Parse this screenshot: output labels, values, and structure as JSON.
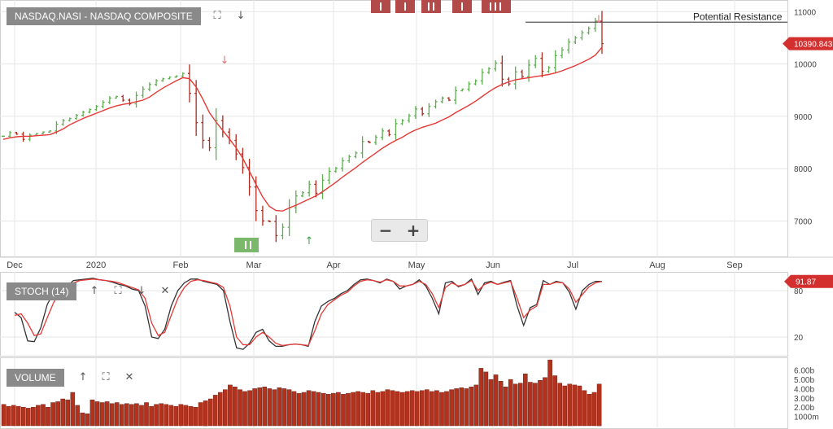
{
  "panels": {
    "price": {
      "label": "NASDAQ.NASI - NASDAQ COMPOSITE",
      "resistance_label": "Potential Resistance",
      "last_price": "10390.843"
    },
    "stoch": {
      "label": "STOCH (14)",
      "last_value": "91.87"
    },
    "volume": {
      "label": "VOLUME"
    }
  },
  "icons": {
    "expand": "expand-icon",
    "up": "arrow-up-icon",
    "down": "arrow-down-icon",
    "close": "close-icon",
    "zoom_out": "minus-icon",
    "zoom_in": "plus-icon"
  },
  "glyphs": {
    "expand": "⛶",
    "up": "↑",
    "down": "↓",
    "close": "✕",
    "minus": "−",
    "plus": "+"
  },
  "colors": {
    "up_bar": "#5cae4f",
    "down_bar": "#b02a1e",
    "moving_average": "#e53935",
    "stoch_k": "#333333",
    "stoch_d": "#e53935",
    "volume_bar": "#b3321d",
    "badge": "#d32f2f",
    "grid": "#e6e6e6"
  },
  "chart_data": [
    {
      "type": "line",
      "title": "NASDAQ.NASI - NASDAQ COMPOSITE",
      "x_axis_labels": [
        "Dec",
        "2020",
        "Feb",
        "Mar",
        "Apr",
        "May",
        "Jun",
        "Jul",
        "Aug",
        "Sep"
      ],
      "y_ticks": [
        7000,
        8000,
        9000,
        10000,
        11000
      ],
      "ylim": [
        6400,
        11100
      ],
      "price_series": [
        8620,
        8690,
        8660,
        8560,
        8640,
        8670,
        8700,
        8720,
        8850,
        8920,
        8960,
        9020,
        9080,
        9130,
        9190,
        9270,
        9350,
        9380,
        9310,
        9240,
        9400,
        9520,
        9610,
        9680,
        9720,
        9750,
        9770,
        9820,
        9440,
        8880,
        8540,
        8400,
        8920,
        8700,
        8540,
        8280,
        8020,
        7650,
        7200,
        7000,
        6990,
        6720,
        6880,
        7250,
        7480,
        7540,
        7700,
        7530,
        7780,
        7950,
        8010,
        8150,
        8230,
        8300,
        8520,
        8500,
        8600,
        8720,
        8650,
        8860,
        8920,
        9010,
        9140,
        9050,
        9190,
        9280,
        9350,
        9310,
        9490,
        9520,
        9620,
        9680,
        9840,
        9910,
        10020,
        9710,
        9620,
        9850,
        9760,
        9980,
        10110,
        9860,
        9930,
        10160,
        10270,
        10420,
        10500,
        10600,
        10680,
        10820,
        10390.843
      ],
      "moving_average": [
        8560,
        8590,
        8610,
        8620,
        8620,
        8630,
        8640,
        8650,
        8700,
        8760,
        8840,
        8900,
        8960,
        9010,
        9060,
        9110,
        9160,
        9200,
        9230,
        9250,
        9280,
        9310,
        9370,
        9460,
        9540,
        9610,
        9680,
        9740,
        9720,
        9560,
        9330,
        9070,
        8890,
        8730,
        8570,
        8400,
        8200,
        7950,
        7700,
        7460,
        7280,
        7200,
        7190,
        7250,
        7300,
        7360,
        7420,
        7480,
        7560,
        7650,
        7740,
        7840,
        7930,
        8020,
        8120,
        8210,
        8300,
        8390,
        8470,
        8540,
        8600,
        8680,
        8740,
        8790,
        8830,
        8870,
        8930,
        8990,
        9070,
        9140,
        9210,
        9290,
        9380,
        9470,
        9550,
        9610,
        9660,
        9700,
        9720,
        9740,
        9760,
        9780,
        9800,
        9830,
        9870,
        9920,
        9970,
        10030,
        10090,
        10170,
        10320
      ],
      "resistance_level": 10800,
      "annotations": [
        "Potential Resistance"
      ]
    },
    {
      "type": "line",
      "title": "STOCH (14)",
      "y_ticks": [
        20,
        80
      ],
      "ylim": [
        0,
        100
      ],
      "series": [
        {
          "values": [
            52,
            45,
            15,
            14,
            32,
            62,
            78,
            82,
            85,
            93,
            94,
            95,
            96,
            94,
            93,
            91,
            88,
            86,
            82,
            80,
            60,
            20,
            18,
            30,
            60,
            80,
            90,
            95,
            95,
            92,
            90,
            88,
            80,
            40,
            6,
            4,
            12,
            26,
            30,
            15,
            8,
            8,
            10,
            11,
            10,
            8,
            40,
            60,
            66,
            70,
            76,
            80,
            88,
            94,
            95,
            93,
            90,
            95,
            92,
            82,
            86,
            88,
            94,
            86,
            70,
            50,
            90,
            92,
            85,
            88,
            95,
            75,
            90,
            92,
            88,
            91,
            93,
            60,
            35,
            58,
            62,
            93,
            88,
            92,
            90,
            78,
            56,
            80,
            88,
            92,
            91.87
          ]
        },
        {
          "values": [
            48,
            50,
            38,
            22,
            24,
            45,
            65,
            78,
            82,
            90,
            93,
            94,
            95,
            94,
            93,
            92,
            90,
            87,
            84,
            81,
            70,
            38,
            22,
            26,
            48,
            70,
            84,
            92,
            94,
            93,
            91,
            89,
            84,
            60,
            20,
            10,
            10,
            20,
            26,
            20,
            12,
            9,
            10,
            11,
            10,
            9,
            28,
            50,
            62,
            68,
            74,
            78,
            86,
            92,
            94,
            93,
            91,
            94,
            92,
            86,
            86,
            88,
            92,
            88,
            76,
            58,
            84,
            90,
            86,
            88,
            93,
            80,
            88,
            91,
            88,
            90,
            92,
            70,
            45,
            55,
            60,
            88,
            88,
            91,
            90,
            82,
            65,
            75,
            85,
            90,
            92
          ]
        }
      ]
    },
    {
      "type": "bar",
      "title": "VOLUME",
      "y_ticks": [
        "1000m",
        "2.00b",
        "3.00b",
        "4.00b",
        "5.00b",
        "6.00b"
      ],
      "ylim": [
        0,
        7.2
      ],
      "values": [
        2.3,
        2.1,
        2.2,
        2.1,
        2.0,
        1.9,
        2.0,
        2.2,
        2.3,
        2.0,
        2.5,
        2.6,
        2.9,
        2.8,
        3.6,
        2.2,
        1.4,
        1.3,
        2.8,
        2.6,
        2.5,
        2.6,
        2.4,
        2.5,
        2.3,
        2.4,
        2.3,
        2.4,
        2.2,
        2.5,
        2.1,
        2.3,
        2.4,
        2.3,
        2.2,
        2.1,
        2.3,
        2.2,
        2.1,
        2.0,
        2.5,
        2.7,
        2.9,
        3.3,
        3.6,
        3.9,
        4.4,
        4.2,
        3.9,
        3.7,
        3.8,
        4.0,
        4.1,
        4.2,
        4.0,
        3.9,
        4.1,
        4.0,
        3.9,
        3.7,
        3.5,
        3.6,
        3.8,
        3.7,
        3.6,
        3.5,
        3.4,
        3.5,
        3.6,
        3.4,
        3.5,
        3.6,
        3.7,
        3.6,
        3.5,
        3.8,
        3.6,
        3.7,
        3.9,
        3.8,
        3.7,
        3.6,
        3.7,
        3.8,
        3.7,
        3.8,
        3.9,
        3.7,
        3.8,
        3.6,
        3.7,
        3.9,
        4.0,
        4.1,
        4.0,
        4.2,
        4.4,
        6.2,
        5.8,
        5.0,
        5.5,
        4.8,
        4.2,
        5.0,
        4.5,
        4.6,
        5.6,
        4.7,
        4.6,
        4.9,
        5.2,
        7.1,
        5.4,
        4.6,
        4.3,
        4.5,
        4.4,
        4.3,
        3.8,
        3.4,
        3.6,
        4.5
      ]
    }
  ]
}
